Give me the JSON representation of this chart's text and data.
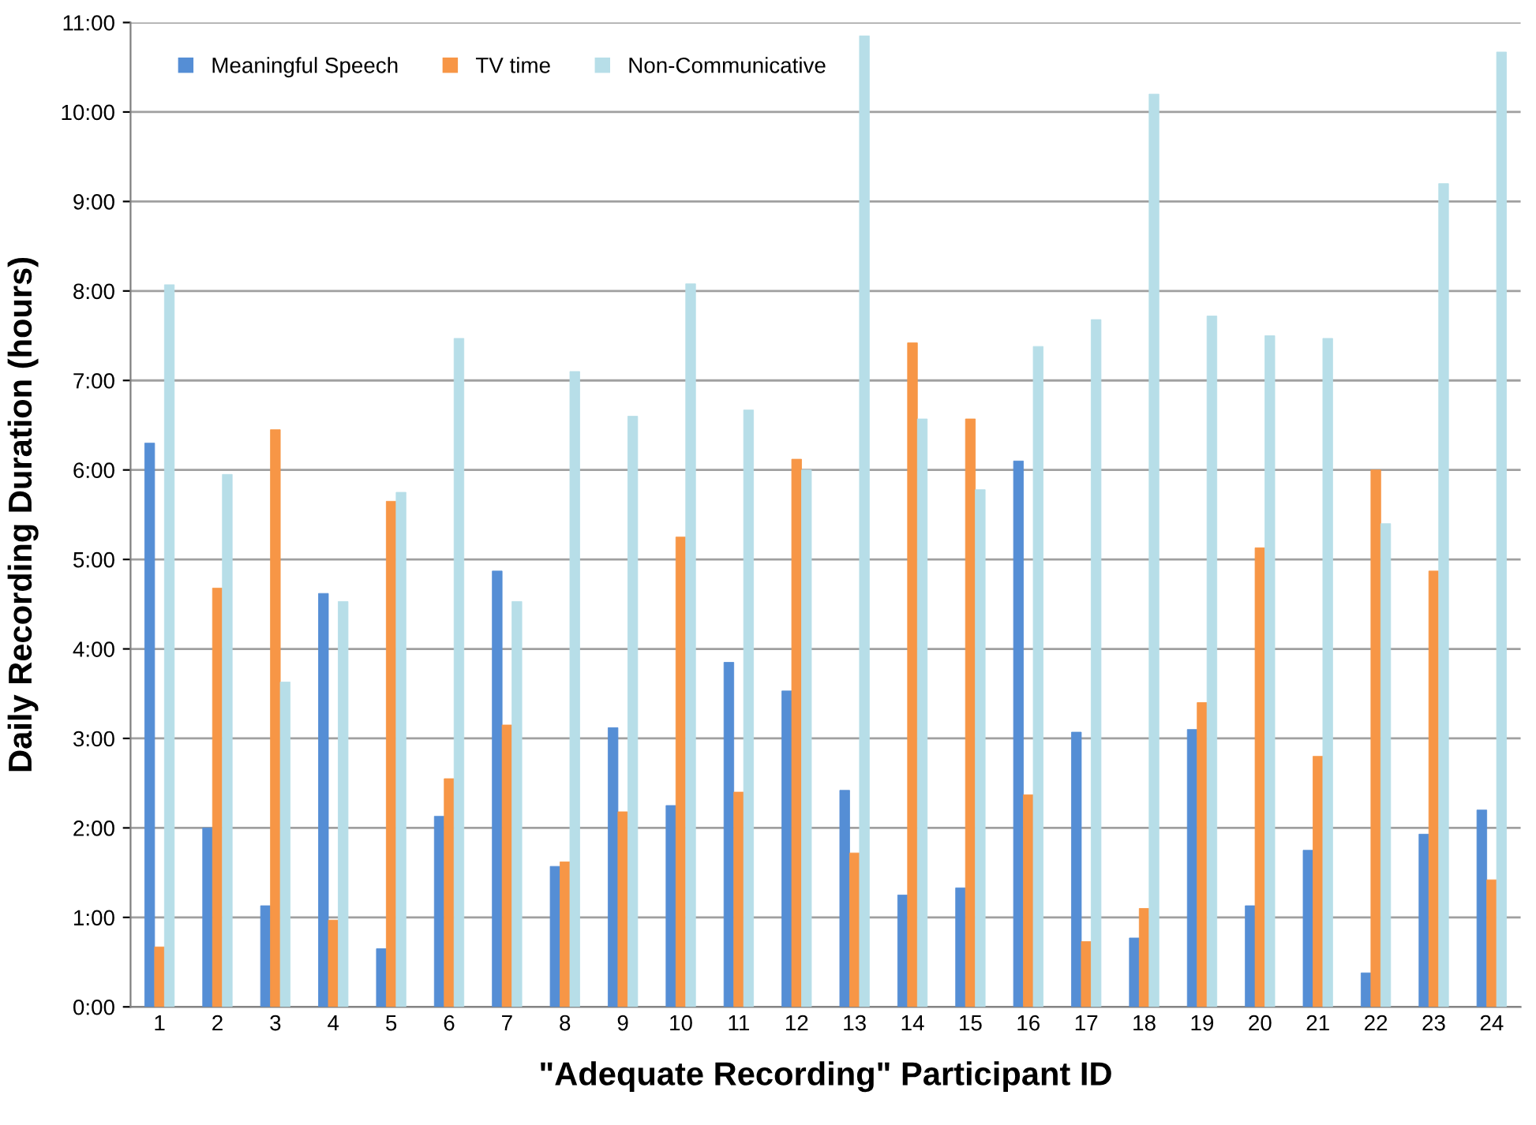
{
  "chart_data": {
    "type": "bar",
    "xlabel": "\"Adequate Recording\" Participant ID",
    "ylabel": "Daily Recording Duration (hours)",
    "categories": [
      "1",
      "2",
      "3",
      "4",
      "5",
      "6",
      "7",
      "8",
      "9",
      "10",
      "11",
      "12",
      "13",
      "14",
      "15",
      "16",
      "17",
      "18",
      "19",
      "20",
      "21",
      "22",
      "23",
      "24"
    ],
    "series": [
      {
        "name": "Meaningful Speech",
        "color": "#558ed5",
        "values": [
          6.3,
          2.0,
          1.13,
          4.62,
          0.65,
          2.13,
          4.87,
          1.57,
          3.12,
          2.25,
          3.85,
          3.53,
          2.42,
          1.25,
          1.33,
          6.1,
          3.07,
          0.77,
          3.1,
          1.13,
          1.75,
          0.38,
          1.93,
          2.2
        ]
      },
      {
        "name": "TV time",
        "color": "#f79646",
        "values": [
          0.67,
          4.68,
          6.45,
          0.97,
          5.65,
          2.55,
          3.15,
          1.62,
          2.18,
          5.25,
          2.4,
          6.12,
          1.72,
          7.42,
          6.57,
          2.37,
          0.73,
          1.1,
          3.4,
          5.13,
          2.8,
          6.0,
          4.87,
          1.42
        ]
      },
      {
        "name": "Non-Communicative",
        "color": "#b7dee8",
        "values": [
          8.07,
          5.95,
          3.63,
          4.53,
          5.75,
          7.47,
          4.53,
          7.1,
          6.6,
          8.08,
          6.67,
          6.0,
          10.85,
          6.57,
          5.78,
          7.38,
          7.68,
          10.2,
          7.72,
          7.5,
          7.47,
          5.4,
          9.2,
          10.67
        ]
      }
    ],
    "ylim": [
      0,
      11
    ],
    "yticks": [
      {
        "value": 0,
        "label": "0:00"
      },
      {
        "value": 1,
        "label": "1:00"
      },
      {
        "value": 2,
        "label": "2:00"
      },
      {
        "value": 3,
        "label": "3:00"
      },
      {
        "value": 4,
        "label": "4:00"
      },
      {
        "value": 5,
        "label": "5:00"
      },
      {
        "value": 6,
        "label": "6:00"
      },
      {
        "value": 7,
        "label": "7:00"
      },
      {
        "value": 8,
        "label": "8:00"
      },
      {
        "value": 9,
        "label": "9:00"
      },
      {
        "value": 10,
        "label": "10:00"
      },
      {
        "value": 11,
        "label": "11:00"
      }
    ],
    "grid": "y",
    "legend": "top left"
  }
}
